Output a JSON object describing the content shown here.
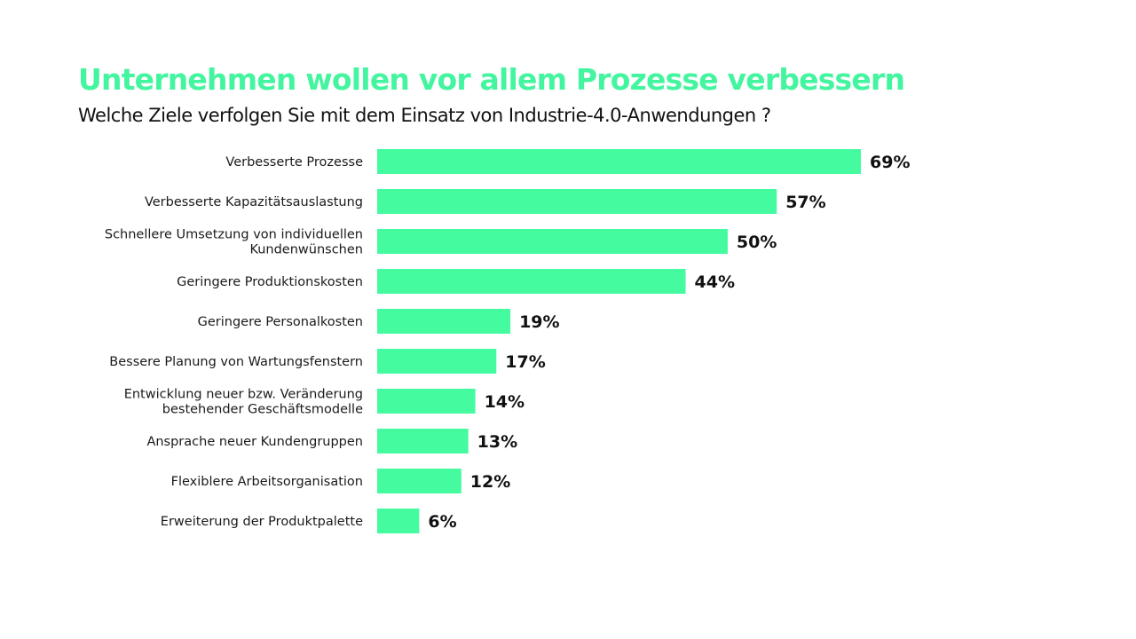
{
  "chart_data": {
    "type": "bar",
    "orientation": "horizontal",
    "title": "Unternehmen wollen vor allem Prozesse verbessern",
    "subtitle": "Welche Ziele verfolgen Sie mit dem Einsatz von Industrie-4.0-Anwendungen ?",
    "xlabel": "",
    "ylabel": "",
    "xlim": [
      0,
      69
    ],
    "grid": false,
    "legend": "none",
    "bar_color": "#44fba0",
    "categories": [
      [
        "Verbesserte Prozesse"
      ],
      [
        "Verbesserte Kapazitätsauslastung"
      ],
      [
        "Schnellere Umsetzung von individuellen",
        "Kundenwünschen"
      ],
      [
        "Geringere Produktionskosten"
      ],
      [
        "Geringere Personalkosten"
      ],
      [
        "Bessere Planung von Wartungsfenstern"
      ],
      [
        "Entwicklung neuer bzw. Veränderung",
        "bestehender Geschäftsmodelle"
      ],
      [
        "Ansprache neuer Kundengruppen"
      ],
      [
        "Flexiblere Arbeitsorganisation"
      ],
      [
        "Erweiterung der Produktpalette"
      ]
    ],
    "values": [
      69,
      57,
      50,
      44,
      19,
      17,
      14,
      13,
      12,
      6
    ],
    "value_labels": [
      "69%",
      "57%",
      "50%",
      "44%",
      "19%",
      "17%",
      "14%",
      "13%",
      "12%",
      "6%"
    ],
    "unit": "%"
  }
}
